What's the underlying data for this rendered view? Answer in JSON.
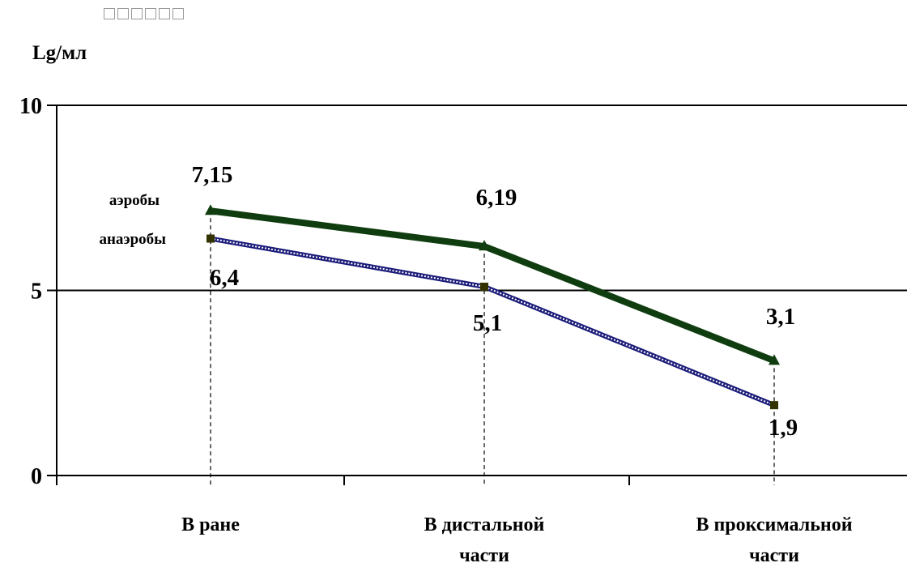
{
  "chart_data": {
    "type": "line",
    "ylabel": "Lg/мл",
    "ylim": [
      0,
      10
    ],
    "yticks": [
      "0",
      "5",
      "10"
    ],
    "grid": false,
    "categories": [
      "В ране",
      "В дистальной части",
      "В проксимальной части"
    ],
    "category_lines": [
      [
        "В ране"
      ],
      [
        "В дистальной",
        "части"
      ],
      [
        "В проксимальной",
        "части"
      ]
    ],
    "series": [
      {
        "name": "аэробы",
        "values": [
          7.15,
          6.19,
          3.1
        ],
        "labels": [
          "7,15",
          "6,19",
          "3,1"
        ],
        "color": "#0f3d0f",
        "marker": "triangle"
      },
      {
        "name": "анаэробы",
        "values": [
          6.4,
          5.1,
          1.9
        ],
        "labels": [
          "6,4",
          "5,1",
          "1,9"
        ],
        "color": "#1b1b7a",
        "marker": "square"
      }
    ]
  }
}
